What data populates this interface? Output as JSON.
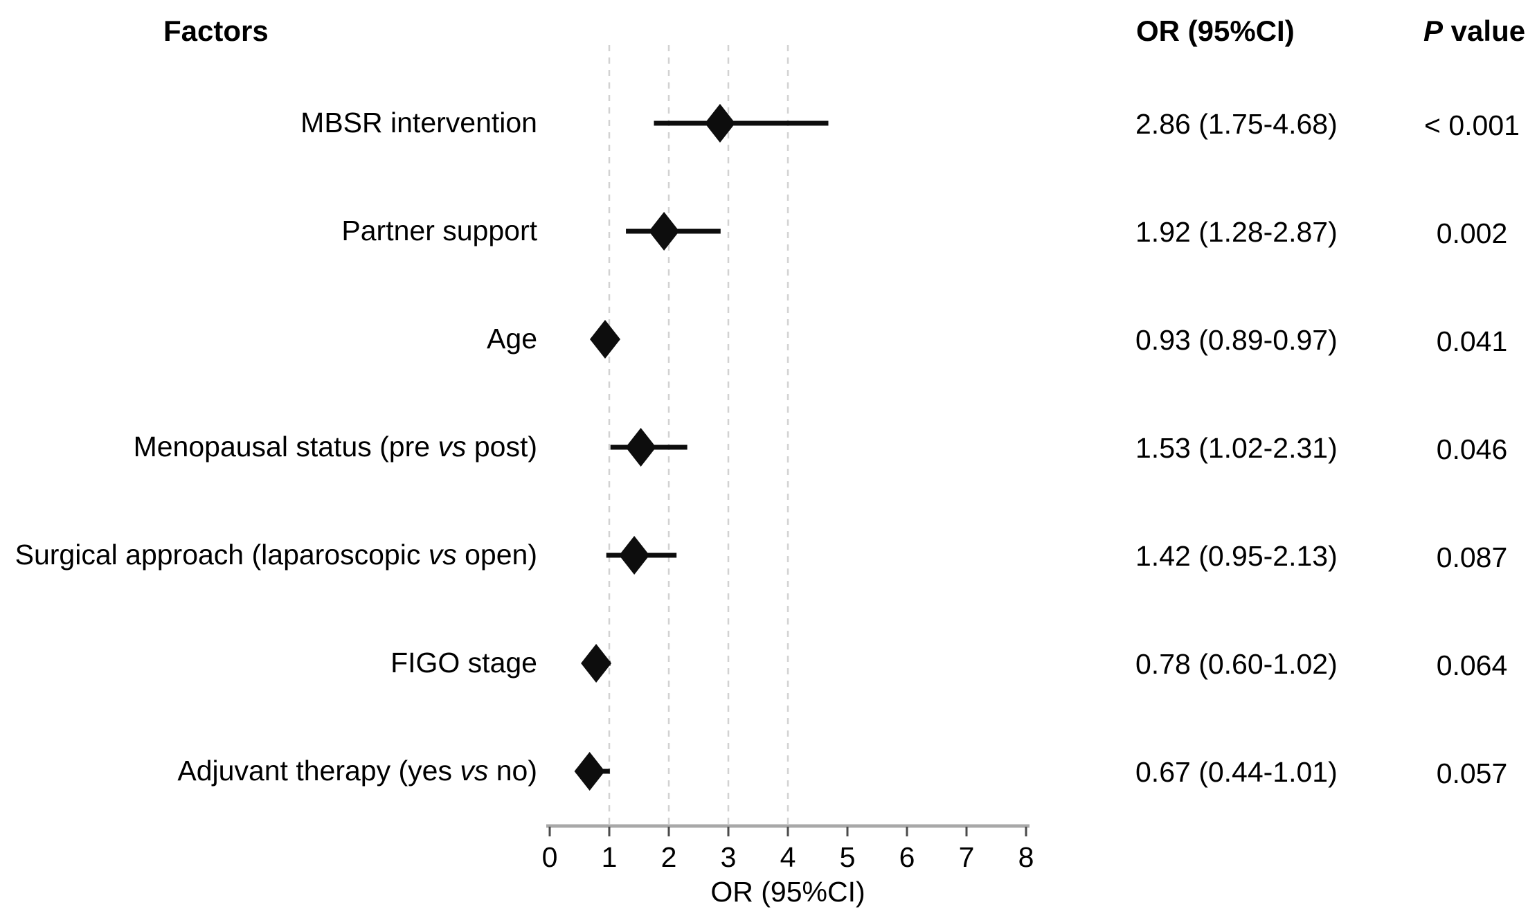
{
  "header": {
    "factors": "Factors",
    "or_ci": "OR (95%CI)",
    "p_italic": "P",
    "p_rest": " value"
  },
  "chart_data": {
    "type": "scatter",
    "subtype": "forest-plot",
    "xlabel": "OR (95%CI)",
    "xlim": [
      0,
      8
    ],
    "x_ticks": [
      0,
      1,
      2,
      3,
      4,
      5,
      6,
      7,
      8
    ],
    "gridlines": [
      1,
      2,
      3,
      4
    ],
    "gridline_style": "dashed",
    "marker": "diamond",
    "rows": [
      {
        "factor": "MBSR intervention",
        "or": 2.86,
        "ci_low": 1.75,
        "ci_high": 4.68,
        "or_ci_text": "2.86 (1.75-4.68)",
        "p_value": "< 0.001"
      },
      {
        "factor": "Partner support",
        "or": 1.92,
        "ci_low": 1.28,
        "ci_high": 2.87,
        "or_ci_text": "1.92 (1.28-2.87)",
        "p_value": "0.002"
      },
      {
        "factor": "Age",
        "or": 0.93,
        "ci_low": 0.89,
        "ci_high": 0.97,
        "or_ci_text": "0.93 (0.89-0.97)",
        "p_value": "0.041"
      },
      {
        "factor": "Menopausal status (pre vs post)",
        "or": 1.53,
        "ci_low": 1.02,
        "ci_high": 2.31,
        "or_ci_text": "1.53 (1.02-2.31)",
        "p_value": "0.046"
      },
      {
        "factor": "Surgical approach (laparoscopic vs open)",
        "or": 1.42,
        "ci_low": 0.95,
        "ci_high": 2.13,
        "or_ci_text": "1.42 (0.95-2.13)",
        "p_value": "0.087"
      },
      {
        "factor": "FIGO stage",
        "or": 0.78,
        "ci_low": 0.6,
        "ci_high": 1.02,
        "or_ci_text": "0.78 (0.60-1.02)",
        "p_value": "0.064"
      },
      {
        "factor": "Adjuvant therapy (yes vs no)",
        "or": 0.67,
        "ci_low": 0.44,
        "ci_high": 1.01,
        "or_ci_text": "0.67 (0.44-1.01)",
        "p_value": "0.057"
      }
    ],
    "colors": {
      "marker": "#0d0d0d",
      "ci_line": "#0d0d0d",
      "gridline": "#d2d2d2",
      "axis_line": "#a8a8a8",
      "tick_mark": "#4a4a4a",
      "text": "#000000"
    }
  }
}
